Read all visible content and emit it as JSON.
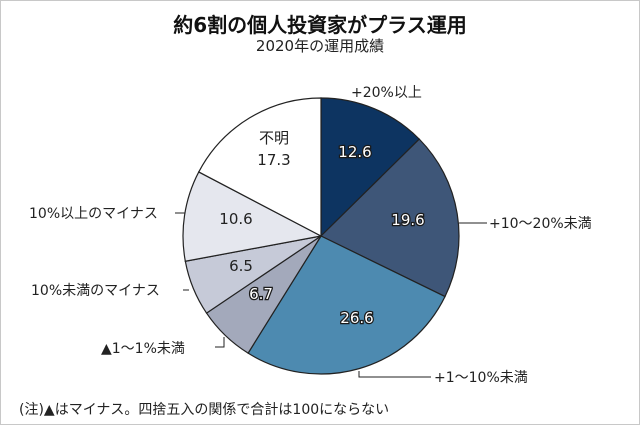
{
  "chart_data": {
    "type": "pie",
    "title": "約6割の個人投資家がプラス運用",
    "subtitle": "2020年の運用成績",
    "note": "(注)▲はマイナス。四捨五入の関係で合計は100にならない",
    "start": "top",
    "direction": "clockwise",
    "slices": [
      {
        "label": "+20%以上",
        "value": 12.6,
        "color": "#0d3461"
      },
      {
        "label": "+10〜20%未満",
        "value": 19.6,
        "color": "#3e5678"
      },
      {
        "label": "+1〜10%未満",
        "value": 26.6,
        "color": "#4d8ab0"
      },
      {
        "label": "▲1〜1%未満",
        "value": 6.7,
        "color": "#a3a9bb"
      },
      {
        "label": "10%未満のマイナス",
        "value": 6.5,
        "color": "#c6cad8"
      },
      {
        "label": "10%以上のマイナス",
        "value": 10.6,
        "color": "#e5e7ee"
      },
      {
        "label": "不明",
        "value": 17.3,
        "color": "#ffffff"
      }
    ]
  }
}
